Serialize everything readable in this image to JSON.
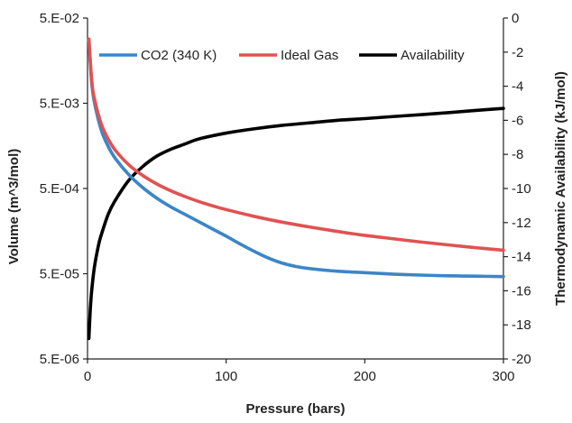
{
  "chart_data": {
    "type": "line",
    "xlabel": "Pressure (bars)",
    "ylabel_left": "Volume (m^3/mol)",
    "ylabel_right": "Thermodynamic Availability (kJ/mol)",
    "x_range": [
      0,
      300
    ],
    "x_ticks": [
      0,
      100,
      200,
      300
    ],
    "x_tick_labels": [
      "0",
      "100",
      "200",
      "300"
    ],
    "y_left_scale": "log",
    "y_left_range": [
      5e-06,
      0.05
    ],
    "y_left_ticks": [
      0.05,
      0.005,
      0.0005,
      5e-05,
      5e-06
    ],
    "y_left_tick_labels": [
      "5.E-02",
      "5.E-03",
      "5.E-04",
      "5.E-05",
      "5.E-06"
    ],
    "y_right_range": [
      -20,
      0
    ],
    "y_right_ticks": [
      0,
      -2,
      -4,
      -6,
      -8,
      -10,
      -12,
      -14,
      -16,
      -18,
      -20
    ],
    "y_right_tick_labels": [
      "0",
      "-2",
      "-4",
      "-6",
      "-8",
      "-10",
      "-12",
      "-14",
      "-16",
      "-18",
      "-20"
    ],
    "grid": false,
    "legend_position": "top",
    "series": [
      {
        "name": "CO2 (340 K)",
        "axis": "left",
        "color": "#3a86c8",
        "x": [
          1,
          3,
          5,
          10,
          15,
          20,
          30,
          40,
          50,
          60,
          70,
          80,
          90,
          100,
          110,
          120,
          130,
          140,
          150,
          160,
          180,
          200,
          220,
          240,
          260,
          280,
          300
        ],
        "y": [
          0.0275,
          0.0088,
          0.0051,
          0.0024,
          0.00155,
          0.00113,
          0.00072,
          0.00051,
          0.000385,
          0.000305,
          0.00025,
          0.000205,
          0.000168,
          0.000138,
          0.000112,
          9.2e-05,
          7.7e-05,
          6.7e-05,
          6.1e-05,
          5.75e-05,
          5.35e-05,
          5.15e-05,
          4.95e-05,
          4.82e-05,
          4.73e-05,
          4.68e-05,
          4.63e-05
        ]
      },
      {
        "name": "Ideal Gas",
        "axis": "left",
        "color": "#e05252",
        "x": [
          1,
          3,
          5,
          10,
          15,
          20,
          30,
          40,
          50,
          60,
          70,
          80,
          90,
          100,
          120,
          140,
          160,
          180,
          200,
          220,
          240,
          260,
          280,
          300
        ],
        "y": [
          0.0283,
          0.0094,
          0.00565,
          0.00283,
          0.00189,
          0.00141,
          0.00094,
          0.000707,
          0.000565,
          0.000471,
          0.000404,
          0.000353,
          0.000314,
          0.000283,
          0.000236,
          0.000202,
          0.000177,
          0.000157,
          0.000141,
          0.000129,
          0.000118,
          0.000109,
          0.000101,
          9.43e-05
        ]
      },
      {
        "name": "Availability",
        "axis": "right",
        "color": "#000000",
        "x": [
          1,
          2,
          3,
          5,
          8,
          10,
          15,
          20,
          30,
          40,
          50,
          60,
          70,
          80,
          100,
          120,
          140,
          160,
          180,
          200,
          220,
          240,
          260,
          280,
          300
        ],
        "y": [
          -18.8,
          -17.1,
          -16.0,
          -14.6,
          -13.3,
          -12.7,
          -11.5,
          -10.7,
          -9.5,
          -8.7,
          -8.1,
          -7.7,
          -7.4,
          -7.1,
          -6.75,
          -6.5,
          -6.3,
          -6.15,
          -6.0,
          -5.9,
          -5.78,
          -5.67,
          -5.55,
          -5.42,
          -5.3
        ]
      }
    ]
  }
}
